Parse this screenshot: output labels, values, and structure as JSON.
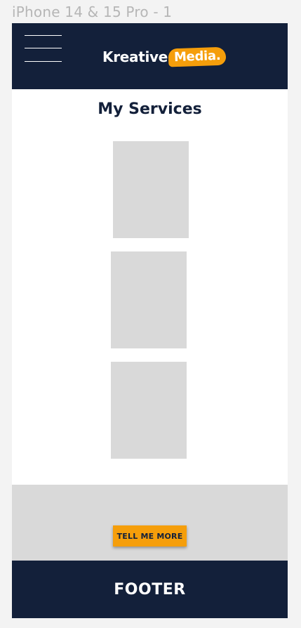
{
  "frame": {
    "title": "iPhone 14 & 15 Pro - 1"
  },
  "header": {
    "menu_icon": "hamburger-menu-icon",
    "logo": {
      "text": "Kreative",
      "badge": "Media."
    }
  },
  "services": {
    "title": "My Services",
    "cards": [
      {
        "placeholder": "image"
      },
      {
        "placeholder": "image"
      },
      {
        "placeholder": "image"
      }
    ]
  },
  "cta": {
    "button_label": "TELL ME MORE"
  },
  "footer": {
    "label": "FOOTER"
  },
  "colors": {
    "navy": "#13203a",
    "accent": "#f59e0b",
    "placeholder_gray": "#d9d9d9",
    "canvas": "#f3f3f3"
  }
}
